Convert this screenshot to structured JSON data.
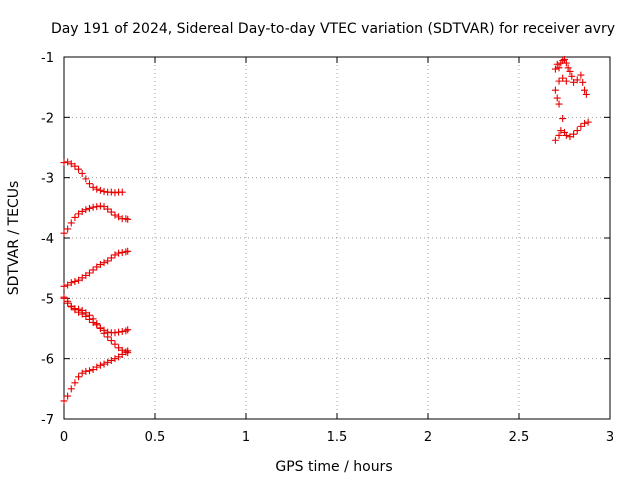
{
  "chart_data": {
    "type": "scatter",
    "title": "Day 191 of 2024, Sidereal Day-to-day VTEC variation (SDTVAR) for receiver avry",
    "xlabel": "GPS time / hours",
    "ylabel": "SDTVAR / TECUs",
    "xlim": [
      0,
      3
    ],
    "ylim": [
      -7,
      -1
    ],
    "xticks": [
      "0",
      "0.5",
      "1",
      "1.5",
      "2",
      "2.5",
      "3"
    ],
    "yticks": [
      "-1",
      "-2",
      "-3",
      "-4",
      "-5",
      "-6",
      "-7"
    ],
    "grid": true,
    "marker": "+",
    "series": [
      {
        "color": "#e60000",
        "points": [
          [
            0.0,
            -2.75
          ],
          [
            0.02,
            -2.74
          ],
          [
            0.04,
            -2.77
          ],
          [
            0.06,
            -2.81
          ],
          [
            0.08,
            -2.86
          ],
          [
            0.1,
            -2.93
          ],
          [
            0.12,
            -3.02
          ],
          [
            0.14,
            -3.1
          ],
          [
            0.16,
            -3.16
          ],
          [
            0.18,
            -3.19
          ],
          [
            0.2,
            -3.21
          ],
          [
            0.22,
            -3.23
          ],
          [
            0.24,
            -3.24
          ],
          [
            0.26,
            -3.24
          ],
          [
            0.28,
            -3.25
          ],
          [
            0.3,
            -3.24
          ],
          [
            0.32,
            -3.24
          ],
          [
            0.0,
            -3.92
          ],
          [
            0.02,
            -3.85
          ],
          [
            0.04,
            -3.75
          ],
          [
            0.06,
            -3.66
          ],
          [
            0.08,
            -3.6
          ],
          [
            0.1,
            -3.56
          ],
          [
            0.12,
            -3.53
          ],
          [
            0.14,
            -3.51
          ],
          [
            0.16,
            -3.49
          ],
          [
            0.18,
            -3.48
          ],
          [
            0.2,
            -3.47
          ],
          [
            0.22,
            -3.48
          ],
          [
            0.24,
            -3.52
          ],
          [
            0.26,
            -3.57
          ],
          [
            0.28,
            -3.62
          ],
          [
            0.3,
            -3.65
          ],
          [
            0.32,
            -3.68
          ],
          [
            0.34,
            -3.68
          ],
          [
            0.35,
            -3.69
          ],
          [
            0.0,
            -4.8
          ],
          [
            0.02,
            -4.78
          ],
          [
            0.04,
            -4.74
          ],
          [
            0.06,
            -4.72
          ],
          [
            0.08,
            -4.7
          ],
          [
            0.1,
            -4.66
          ],
          [
            0.12,
            -4.62
          ],
          [
            0.14,
            -4.58
          ],
          [
            0.16,
            -4.53
          ],
          [
            0.18,
            -4.48
          ],
          [
            0.2,
            -4.44
          ],
          [
            0.22,
            -4.41
          ],
          [
            0.24,
            -4.38
          ],
          [
            0.26,
            -4.33
          ],
          [
            0.28,
            -4.28
          ],
          [
            0.3,
            -4.25
          ],
          [
            0.32,
            -4.24
          ],
          [
            0.34,
            -4.23
          ],
          [
            0.35,
            -4.22
          ],
          [
            0.0,
            -4.98
          ],
          [
            0.02,
            -5.05
          ],
          [
            0.04,
            -5.13
          ],
          [
            0.06,
            -5.19
          ],
          [
            0.08,
            -5.23
          ],
          [
            0.1,
            -5.26
          ],
          [
            0.12,
            -5.3
          ],
          [
            0.14,
            -5.35
          ],
          [
            0.16,
            -5.4
          ],
          [
            0.18,
            -5.44
          ],
          [
            0.2,
            -5.49
          ],
          [
            0.22,
            -5.53
          ],
          [
            0.24,
            -5.56
          ],
          [
            0.26,
            -5.57
          ],
          [
            0.28,
            -5.57
          ],
          [
            0.3,
            -5.56
          ],
          [
            0.32,
            -5.55
          ],
          [
            0.34,
            -5.54
          ],
          [
            0.35,
            -5.52
          ],
          [
            0.0,
            -5.0
          ],
          [
            0.02,
            -5.08
          ],
          [
            0.04,
            -5.14
          ],
          [
            0.06,
            -5.17
          ],
          [
            0.08,
            -5.18
          ],
          [
            0.1,
            -5.2
          ],
          [
            0.12,
            -5.24
          ],
          [
            0.14,
            -5.28
          ],
          [
            0.16,
            -5.34
          ],
          [
            0.18,
            -5.42
          ],
          [
            0.2,
            -5.5
          ],
          [
            0.22,
            -5.58
          ],
          [
            0.24,
            -5.64
          ],
          [
            0.26,
            -5.7
          ],
          [
            0.28,
            -5.76
          ],
          [
            0.3,
            -5.82
          ],
          [
            0.32,
            -5.86
          ],
          [
            0.34,
            -5.89
          ],
          [
            0.35,
            -5.9
          ],
          [
            0.0,
            -6.7
          ],
          [
            0.02,
            -6.62
          ],
          [
            0.04,
            -6.5
          ],
          [
            0.06,
            -6.4
          ],
          [
            0.08,
            -6.3
          ],
          [
            0.1,
            -6.24
          ],
          [
            0.12,
            -6.21
          ],
          [
            0.14,
            -6.2
          ],
          [
            0.16,
            -6.18
          ],
          [
            0.18,
            -6.14
          ],
          [
            0.2,
            -6.11
          ],
          [
            0.22,
            -6.09
          ],
          [
            0.24,
            -6.06
          ],
          [
            0.26,
            -6.03
          ],
          [
            0.28,
            -6.0
          ],
          [
            0.3,
            -5.97
          ],
          [
            0.32,
            -5.93
          ],
          [
            0.34,
            -5.89
          ],
          [
            0.35,
            -5.87
          ],
          [
            2.7,
            -1.55
          ],
          [
            2.71,
            -1.68
          ],
          [
            2.72,
            -1.78
          ],
          [
            2.7,
            -1.2
          ],
          [
            2.71,
            -1.12
          ],
          [
            2.72,
            -1.18
          ],
          [
            2.73,
            -1.1
          ],
          [
            2.74,
            -1.06
          ],
          [
            2.75,
            -1.04
          ],
          [
            2.76,
            -1.1
          ],
          [
            2.77,
            -1.18
          ],
          [
            2.78,
            -1.24
          ],
          [
            2.79,
            -1.32
          ],
          [
            2.8,
            -1.42
          ],
          [
            2.82,
            -1.38
          ],
          [
            2.84,
            -1.3
          ],
          [
            2.85,
            -1.42
          ],
          [
            2.86,
            -1.55
          ],
          [
            2.87,
            -1.62
          ],
          [
            2.72,
            -1.4
          ],
          [
            2.74,
            -1.35
          ],
          [
            2.76,
            -1.4
          ],
          [
            2.7,
            -2.38
          ],
          [
            2.72,
            -2.3
          ],
          [
            2.73,
            -2.22
          ],
          [
            2.74,
            -2.02
          ],
          [
            2.75,
            -2.25
          ],
          [
            2.76,
            -2.3
          ],
          [
            2.78,
            -2.32
          ],
          [
            2.8,
            -2.28
          ],
          [
            2.82,
            -2.22
          ],
          [
            2.84,
            -2.15
          ],
          [
            2.86,
            -2.1
          ],
          [
            2.88,
            -2.08
          ]
        ]
      }
    ]
  }
}
